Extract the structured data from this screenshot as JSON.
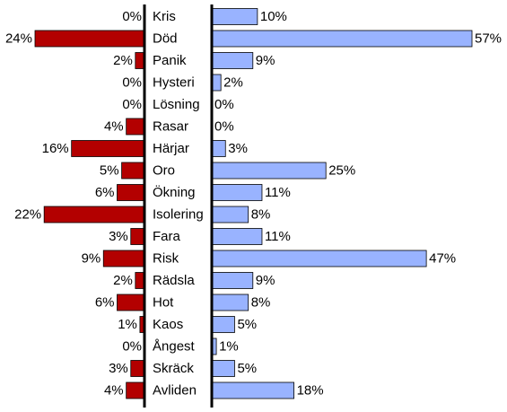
{
  "chart_data": {
    "type": "bar",
    "orientation": "horizontal-diverging",
    "categories": [
      "Kris",
      "Död",
      "Panik",
      "Hysteri",
      "Lösning",
      "Rasar",
      "Härjar",
      "Oro",
      "Ökning",
      "Isolering",
      "Fara",
      "Risk",
      "Rädsla",
      "Hot",
      "Kaos",
      "Ångest",
      "Skräck",
      "Avliden"
    ],
    "series": [
      {
        "side": "left",
        "color": "#b30000",
        "values": [
          0,
          24,
          2,
          0,
          0,
          4,
          16,
          5,
          6,
          22,
          3,
          9,
          2,
          6,
          1,
          0,
          3,
          4
        ]
      },
      {
        "side": "right",
        "color": "#99b3ff",
        "values": [
          10,
          57,
          9,
          2,
          0,
          0,
          3,
          25,
          11,
          8,
          11,
          47,
          9,
          8,
          5,
          1,
          5,
          18
        ]
      }
    ],
    "value_suffix": "%",
    "grid": false,
    "legend": "none"
  }
}
